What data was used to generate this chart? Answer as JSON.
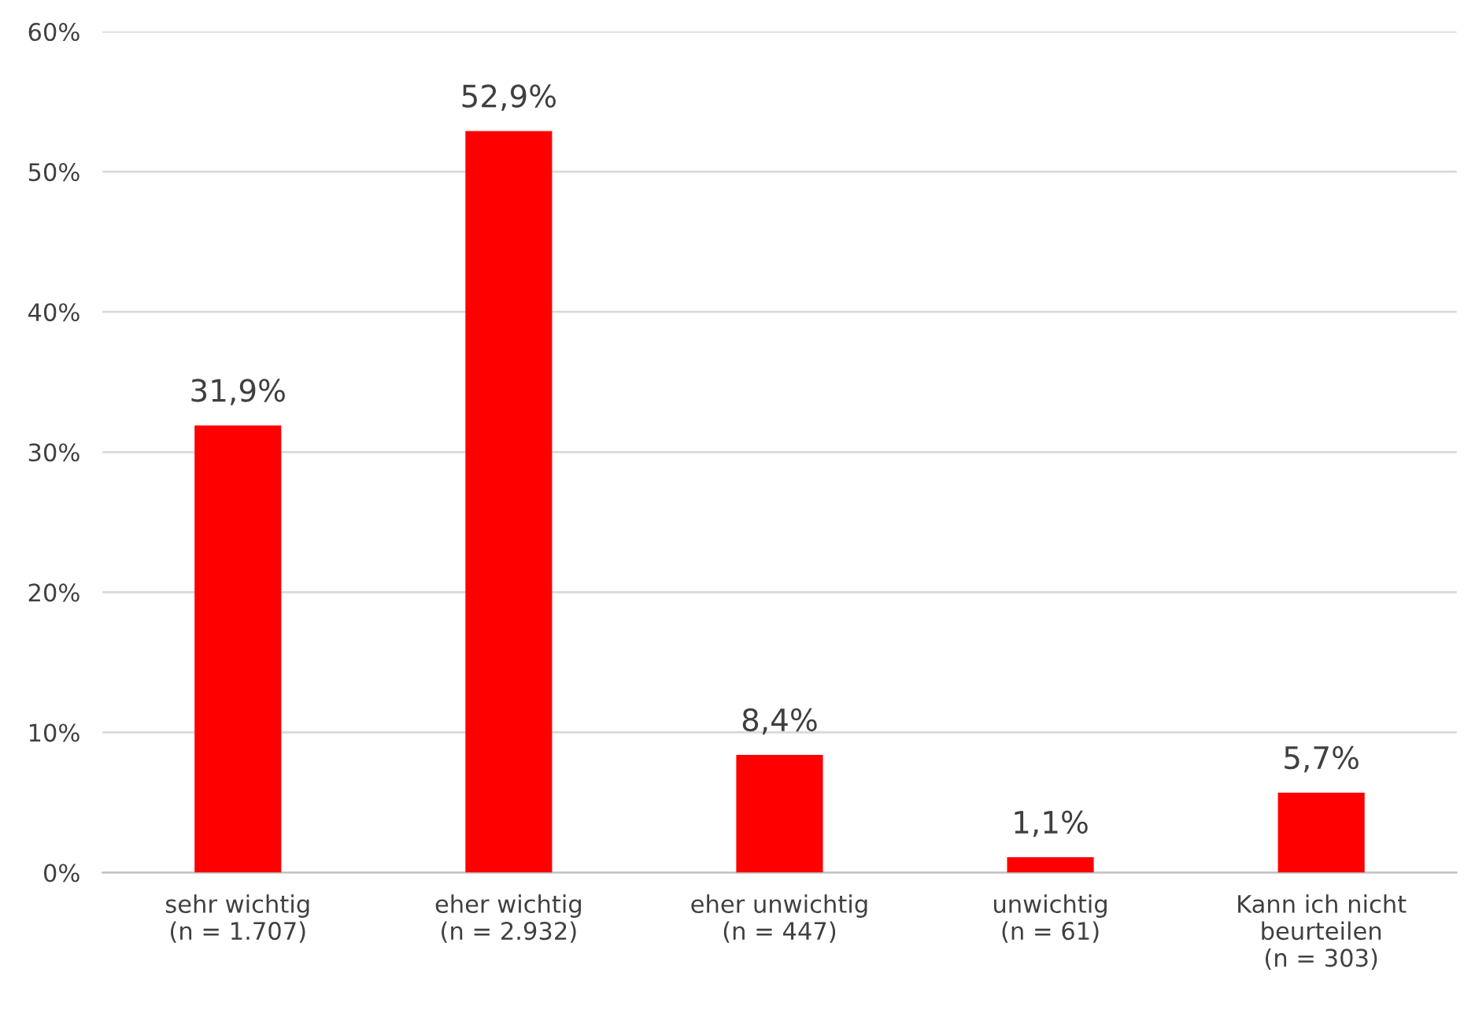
{
  "chart_data": {
    "type": "bar",
    "categories": [
      "sehr wichtig\n(n = 1.707)",
      "eher wichtig\n(n = 2.932)",
      "eher unwichtig\n(n = 447)",
      "unwichtig\n(n = 61)",
      "Kann ich nicht\nbeurteilen\n(n = 303)"
    ],
    "values": [
      31.9,
      52.9,
      8.4,
      1.1,
      5.7
    ],
    "value_labels": [
      "31,9%",
      "52,9%",
      "8,4%",
      "1,1%",
      "5,7%"
    ],
    "color": "#ff0000",
    "ylim": [
      0,
      60
    ],
    "yticks": [
      {
        "value": 0,
        "label": "0%"
      },
      {
        "value": 10,
        "label": "10%"
      },
      {
        "value": 20,
        "label": "20%"
      },
      {
        "value": 30,
        "label": "30%"
      },
      {
        "value": 40,
        "label": "40%"
      },
      {
        "value": 50,
        "label": "50%"
      },
      {
        "value": 60,
        "label": "60%"
      }
    ],
    "grid": "y",
    "legend": false
  }
}
